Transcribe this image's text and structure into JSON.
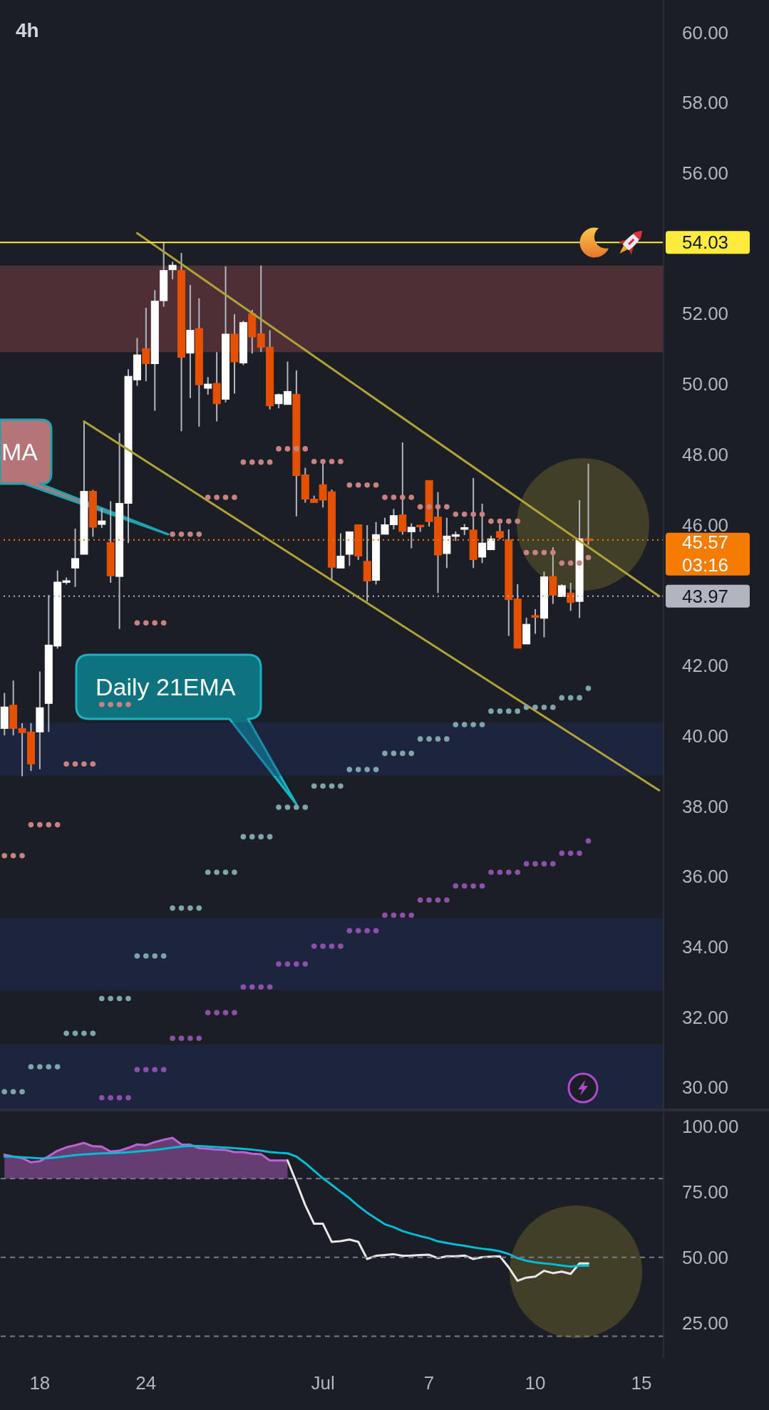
{
  "chart_data": [
    {
      "type": "candlestick",
      "title": "4h",
      "categories": [
        null,
        null,
        null,
        null,
        null,
        null,
        null,
        null,
        null,
        null,
        null,
        null,
        null,
        null,
        null,
        null,
        null,
        null,
        null,
        null,
        null,
        null,
        null,
        null,
        null,
        null,
        null,
        null,
        null,
        null,
        null,
        null,
        null,
        null,
        null,
        null,
        null,
        null,
        null,
        null,
        null,
        null,
        null,
        null,
        null,
        null,
        null,
        null,
        null,
        null,
        null,
        null,
        null,
        null,
        null,
        null,
        null,
        null,
        null,
        null,
        null,
        null,
        null,
        null,
        null,
        null,
        null,
        null,
        null,
        null,
        null,
        null,
        null,
        null,
        null
      ],
      "ohlc": [
        [
          40.21,
          41.22,
          40.01,
          40.82
        ],
        [
          40.87,
          41.57,
          40.01,
          40.21
        ],
        [
          40.21,
          40.36,
          38.85,
          40.09
        ],
        [
          40.11,
          40.36,
          39.0,
          39.2
        ],
        [
          40.11,
          41.83,
          39.05,
          40.8
        ],
        [
          40.92,
          44.0,
          40.11,
          42.58
        ],
        [
          42.55,
          44.7,
          42.48,
          44.37
        ],
        [
          44.39,
          44.5,
          44.3,
          44.41
        ],
        [
          44.77,
          45.89,
          44.23,
          45.04
        ],
        [
          45.16,
          48.94,
          45.16,
          46.95
        ],
        [
          46.95,
          46.99,
          45.66,
          45.93
        ],
        [
          46.01,
          46.47,
          45.91,
          46.11
        ],
        [
          45.5,
          46.67,
          44.35,
          44.55
        ],
        [
          44.53,
          48.61,
          43.04,
          46.61
        ],
        [
          46.61,
          50.42,
          45.48,
          50.22
        ],
        [
          50.12,
          51.31,
          49.95,
          50.83
        ],
        [
          51.01,
          52.17,
          50.08,
          50.58
        ],
        [
          50.58,
          52.67,
          49.24,
          52.36
        ],
        [
          52.37,
          54.03,
          52.2,
          53.23
        ],
        [
          53.25,
          53.48,
          52.98,
          53.38
        ],
        [
          53.23,
          53.73,
          48.66,
          50.76
        ],
        [
          50.88,
          52.82,
          49.6,
          51.53
        ],
        [
          51.58,
          52.44,
          48.79,
          49.98
        ],
        [
          49.88,
          50.2,
          49.7,
          50.0
        ],
        [
          50.02,
          50.91,
          48.94,
          49.44
        ],
        [
          49.57,
          53.35,
          49.48,
          51.42
        ],
        [
          51.42,
          51.99,
          49.73,
          50.63
        ],
        [
          50.6,
          51.8,
          50.54,
          51.75
        ],
        [
          52.0,
          52.11,
          50.87,
          51.34
        ],
        [
          51.43,
          53.37,
          50.91,
          51.05
        ],
        [
          51.05,
          51.53,
          49.28,
          49.38
        ],
        [
          49.44,
          49.73,
          49.31,
          49.7
        ],
        [
          49.42,
          50.64,
          49.42,
          49.79
        ],
        [
          49.71,
          50.39,
          46.24,
          47.4
        ],
        [
          47.42,
          47.62,
          46.63,
          46.73
        ],
        [
          46.73,
          46.83,
          46.62,
          46.63
        ],
        [
          47.14,
          47.73,
          46.49,
          46.7
        ],
        [
          46.94,
          47.0,
          44.42,
          44.79
        ],
        [
          44.77,
          45.76,
          44.77,
          45.11
        ],
        [
          45.16,
          45.8,
          44.83,
          45.8
        ],
        [
          46.0,
          46.0,
          45.0,
          45.11
        ],
        [
          44.96,
          45.99,
          43.82,
          44.4
        ],
        [
          44.42,
          46.08,
          44.3,
          45.72
        ],
        [
          45.73,
          46.2,
          45.73,
          46.0
        ],
        [
          46.0,
          46.45,
          45.87,
          46.26
        ],
        [
          46.28,
          48.34,
          45.72,
          45.81
        ],
        [
          45.8,
          46.04,
          45.33,
          45.93
        ],
        [
          45.99,
          45.99,
          45.8,
          45.95
        ],
        [
          47.26,
          47.26,
          45.95,
          46.09
        ],
        [
          46.22,
          46.93,
          44.06,
          45.14
        ],
        [
          45.18,
          46.2,
          44.77,
          45.68
        ],
        [
          45.71,
          45.81,
          45.54,
          45.72
        ],
        [
          45.91,
          46.02,
          45.71,
          45.92
        ],
        [
          45.85,
          47.33,
          44.77,
          45.01
        ],
        [
          45.08,
          46.6,
          44.91,
          45.48
        ],
        [
          45.29,
          45.69,
          45.29,
          45.6
        ],
        [
          45.81,
          46.02,
          45.59,
          45.64
        ],
        [
          45.58,
          45.87,
          42.84,
          43.87
        ],
        [
          43.89,
          44.31,
          42.49,
          42.49
        ],
        [
          42.61,
          43.36,
          42.61,
          43.17
        ],
        [
          43.42,
          43.6,
          42.9,
          43.39
        ],
        [
          43.34,
          44.67,
          42.8,
          44.52
        ],
        [
          44.53,
          45.36,
          43.75,
          44.0
        ],
        [
          43.96,
          44.31,
          43.96,
          44.27
        ],
        [
          44.06,
          44.35,
          43.55,
          43.79
        ],
        [
          43.82,
          46.7,
          43.35,
          45.6
        ],
        [
          45.6,
          47.74,
          45.43,
          45.57
        ],
        null,
        null,
        null,
        null,
        null,
        null,
        null,
        null
      ],
      "colors": [
        "#ffffff",
        "#e65100",
        "#e65100",
        "#e65100",
        "#ffffff",
        "#ffffff",
        "#ffffff",
        "#ffffff",
        "#ffffff",
        "#ffffff",
        "#e65100",
        "#ffffff",
        "#e65100",
        "#ffffff",
        "#ffffff",
        "#ffffff",
        "#e65100",
        "#ffffff",
        "#ffffff",
        "#ffffff",
        "#e65100",
        "#ffffff",
        "#e65100",
        "#ffffff",
        "#e65100",
        "#ffffff",
        "#e65100",
        "#ffffff",
        "#e65100",
        "#e65100",
        "#e65100",
        "#ffffff",
        "#ffffff",
        "#e65100",
        "#e65100",
        "#e65100",
        "#e65100",
        "#e65100",
        "#ffffff",
        "#ffffff",
        "#e65100",
        "#e65100",
        "#ffffff",
        "#ffffff",
        "#ffffff",
        "#e65100",
        "#ffffff",
        "#e65100",
        "#e65100",
        "#e65100",
        "#ffffff",
        "#ffffff",
        "#ffffff",
        "#e65100",
        "#ffffff",
        "#ffffff",
        "#e65100",
        "#e65100",
        "#e65100",
        "#ffffff",
        "#e65100",
        "#ffffff",
        "#e65100",
        "#ffffff",
        "#e65100",
        "#ffffff",
        "#e65100",
        null,
        null,
        null,
        null,
        null,
        null,
        null,
        null
      ],
      "ylim": [
        29.4,
        60.92
      ],
      "yticks": [
        {
          "value": 30,
          "label": "30.00"
        },
        {
          "value": 32,
          "label": "32.00"
        },
        {
          "value": 34,
          "label": "34.00"
        },
        {
          "value": 36,
          "label": "36.00"
        },
        {
          "value": 38,
          "label": "38.00"
        },
        {
          "value": 40,
          "label": "40.00"
        },
        {
          "value": 42,
          "label": "42.00"
        },
        {
          "value": 46,
          "label": "46.00"
        },
        {
          "value": 48,
          "label": "48.00"
        },
        {
          "value": 50,
          "label": "50.00"
        },
        {
          "value": 52,
          "label": "52.00"
        },
        {
          "value": 56,
          "label": "56.00"
        },
        {
          "value": 58,
          "label": "58.00"
        },
        {
          "value": 60,
          "label": "60.00"
        }
      ],
      "tick_labels": "y",
      "series": [
        {
          "type": "scatter",
          "marker": "circle",
          "color": "#c88282",
          "values": [
            36.59,
            36.59,
            36.59,
            37.47,
            37.47,
            37.47,
            37.47,
            39.2,
            39.2,
            39.2,
            39.2,
            40.89,
            40.89,
            40.89,
            40.89,
            43.21,
            43.21,
            43.21,
            43.21,
            45.73,
            45.73,
            45.73,
            45.73,
            46.78,
            46.78,
            46.78,
            46.78,
            47.78,
            47.78,
            47.78,
            47.78,
            48.16,
            48.16,
            48.16,
            48.16,
            47.8,
            47.8,
            47.8,
            47.8,
            47.13,
            47.13,
            47.13,
            47.13,
            46.78,
            46.78,
            46.78,
            46.78,
            46.51,
            46.51,
            46.51,
            46.51,
            46.3,
            46.3,
            46.3,
            46.3,
            46.1,
            46.1,
            46.1,
            46.1,
            45.21,
            45.21,
            45.21,
            45.21,
            44.91,
            44.91,
            44.91,
            45.07,
            null,
            null,
            null,
            null,
            null,
            null,
            null,
            null
          ]
        },
        {
          "type": "scatter",
          "marker": "circle",
          "color": "#7da5aa",
          "values": [
            29.88,
            29.88,
            29.88,
            30.59,
            30.59,
            30.59,
            30.59,
            31.54,
            31.54,
            31.54,
            31.54,
            32.53,
            32.53,
            32.53,
            32.53,
            33.74,
            33.74,
            33.74,
            33.74,
            35.1,
            35.1,
            35.1,
            35.1,
            36.12,
            36.12,
            36.12,
            36.12,
            37.13,
            37.13,
            37.13,
            37.13,
            37.97,
            37.97,
            37.97,
            37.97,
            38.57,
            38.57,
            38.57,
            38.57,
            39.04,
            39.04,
            39.04,
            39.04,
            39.5,
            39.5,
            39.5,
            39.5,
            39.91,
            39.91,
            39.91,
            39.91,
            40.32,
            40.32,
            40.32,
            40.32,
            40.7,
            40.7,
            40.7,
            40.7,
            40.81,
            40.81,
            40.81,
            40.81,
            41.08,
            41.08,
            41.08,
            41.35,
            null,
            null,
            null,
            null,
            null,
            null,
            null,
            null
          ]
        },
        {
          "type": "scatter",
          "marker": "circle",
          "color": "#8c50aa",
          "values": [
            null,
            null,
            null,
            null,
            null,
            null,
            null,
            null,
            null,
            null,
            null,
            29.71,
            29.71,
            29.71,
            29.71,
            30.51,
            30.51,
            30.51,
            30.51,
            31.4,
            31.4,
            31.4,
            31.4,
            32.13,
            32.13,
            32.13,
            32.13,
            32.86,
            32.86,
            32.86,
            32.86,
            33.51,
            33.51,
            33.51,
            33.51,
            34.02,
            34.02,
            34.02,
            34.02,
            34.46,
            34.46,
            34.46,
            34.46,
            34.9,
            34.9,
            34.9,
            34.9,
            35.33,
            35.33,
            35.33,
            35.33,
            35.73,
            35.73,
            35.73,
            35.73,
            36.12,
            36.12,
            36.12,
            36.12,
            36.36,
            36.36,
            36.36,
            36.36,
            36.66,
            36.66,
            36.66,
            37.01,
            null,
            null,
            null,
            null,
            null,
            null,
            null,
            null
          ]
        },
        {
          "type": "line",
          "color": "#b0a236",
          "values": [
            null,
            null,
            null,
            null,
            null,
            null,
            null,
            null,
            null,
            null,
            null,
            null,
            null,
            null,
            null,
            54.29,
            null,
            null,
            null,
            null,
            null,
            null,
            null,
            null,
            null,
            null,
            null,
            null,
            null,
            null,
            null,
            null,
            null,
            null,
            null,
            null,
            null,
            null,
            null,
            null,
            null,
            null,
            null,
            null,
            null,
            null,
            null,
            null,
            null,
            null,
            null,
            null,
            null,
            null,
            null,
            null,
            null,
            null,
            null,
            null,
            null,
            null,
            null,
            null,
            null,
            null,
            null,
            null,
            null,
            null,
            null,
            null,
            null,
            null,
            43.97
          ]
        },
        {
          "type": "line",
          "color": "#b0a236",
          "values": [
            null,
            null,
            null,
            null,
            null,
            null,
            null,
            null,
            null,
            48.94,
            null,
            null,
            null,
            null,
            null,
            null,
            null,
            null,
            null,
            null,
            null,
            null,
            null,
            null,
            null,
            null,
            null,
            null,
            null,
            null,
            null,
            null,
            null,
            null,
            null,
            null,
            null,
            null,
            null,
            null,
            null,
            null,
            null,
            null,
            null,
            null,
            null,
            null,
            null,
            null,
            null,
            null,
            null,
            null,
            null,
            null,
            null,
            null,
            null,
            null,
            null,
            null,
            null,
            null,
            null,
            null,
            null,
            null,
            null,
            null,
            null,
            null,
            null,
            null,
            38.45
          ]
        }
      ],
      "ref_lines": [
        {
          "axis": "y",
          "value": 54.03,
          "label": "54.03",
          "color": "#ffeb3b",
          "line_style": "solid"
        },
        {
          "axis": "y",
          "value": 45.57,
          "label": "45.57\n03:16",
          "color": "#f57c00",
          "line_style": "dotted"
        },
        {
          "axis": "y",
          "value": 43.97,
          "label": "43.97",
          "color": "#b2b5be",
          "line_style": "dotted"
        }
      ],
      "bands": [
        {
          "axis": "y",
          "from": 50.91,
          "to": 53.37,
          "color": "#c25a5e"
        },
        {
          "axis": "y",
          "from": 38.86,
          "to": 40.38,
          "color": "#213673"
        },
        {
          "axis": "y",
          "from": 32.76,
          "to": 34.82,
          "color": "#213673"
        },
        {
          "axis": "y",
          "from": 29.4,
          "to": 31.22,
          "color": "#213673"
        }
      ],
      "annotations": [
        "MA",
        "Daily 21EMA"
      ]
    },
    {
      "type": "line",
      "categories": [
        null,
        null,
        null,
        null,
        "18",
        null,
        null,
        null,
        null,
        null,
        null,
        null,
        null,
        null,
        null,
        null,
        "24",
        null,
        null,
        null,
        null,
        null,
        null,
        null,
        null,
        null,
        null,
        null,
        null,
        null,
        null,
        null,
        null,
        null,
        null,
        null,
        "Jul",
        null,
        null,
        null,
        null,
        null,
        null,
        null,
        null,
        null,
        null,
        null,
        "7",
        null,
        null,
        null,
        null,
        null,
        null,
        null,
        null,
        null,
        null,
        null,
        "10",
        null,
        null,
        null,
        null,
        null,
        null,
        null,
        null,
        null,
        null,
        null,
        "15",
        null,
        null
      ],
      "ylim": [
        11.7,
        105
      ],
      "yticks": [
        {
          "value": 25,
          "label": "25.00"
        },
        {
          "value": 50,
          "label": "50.00"
        },
        {
          "value": 75,
          "label": "75.00"
        },
        {
          "value": 100,
          "label": "100.00"
        }
      ],
      "series": [
        {
          "color": "#be64d2",
          "values": [
            89.1,
            88.4,
            87.8,
            86.2,
            86.6,
            88.5,
            90.6,
            91.9,
            92.7,
            93.6,
            92.3,
            92.2,
            90.3,
            90.6,
            91.7,
            93.0,
            92.7,
            93.9,
            94.8,
            95.5,
            93.0,
            92.9,
            91.6,
            91.4,
            91.0,
            90.9,
            90.1,
            90.1,
            89.5,
            89.3,
            86.9,
            86.9,
            86.9,
            null,
            null,
            null,
            null,
            null,
            null,
            null,
            null,
            null,
            null,
            null,
            null,
            null,
            null,
            null,
            null,
            null,
            null,
            null,
            null,
            null,
            null,
            null,
            null,
            null,
            null,
            null,
            null,
            null,
            null,
            null,
            null,
            null,
            null,
            null,
            null,
            null,
            null,
            null,
            null,
            null,
            null
          ],
          "lower": [
            80,
            80,
            80,
            80,
            80,
            80,
            80,
            80,
            80,
            80,
            80,
            80,
            80,
            80,
            80,
            80,
            80,
            80,
            80,
            80,
            80,
            80,
            80,
            80,
            80,
            80,
            80,
            80,
            80,
            80,
            80,
            80,
            80,
            null,
            null,
            null,
            null,
            null,
            null,
            null,
            null,
            null,
            null,
            null,
            null,
            null,
            null,
            null,
            null,
            null,
            null,
            null,
            null,
            null,
            null,
            null,
            null,
            null,
            null,
            null,
            null,
            null,
            null,
            null,
            null,
            null,
            null,
            null,
            null,
            null,
            null,
            null,
            null,
            null,
            null
          ],
          "upper": [
            89.1,
            88.4,
            87.8,
            86.2,
            86.6,
            88.5,
            90.6,
            91.9,
            92.7,
            93.6,
            92.3,
            92.2,
            90.3,
            90.6,
            91.7,
            93.0,
            92.7,
            93.9,
            94.8,
            95.5,
            93.0,
            92.9,
            91.6,
            91.4,
            91.0,
            90.9,
            90.1,
            90.1,
            89.5,
            89.3,
            86.9,
            86.9,
            86.9,
            null,
            null,
            null,
            null,
            null,
            null,
            null,
            null,
            null,
            null,
            null,
            null,
            null,
            null,
            null,
            null,
            null,
            null,
            null,
            null,
            null,
            null,
            null,
            null,
            null,
            null,
            null,
            null,
            null,
            null,
            null,
            null,
            null,
            null,
            null,
            null,
            null,
            null,
            null,
            null,
            null,
            null
          ]
        },
        {
          "color": "#e8e8e8",
          "values": [
            null,
            null,
            null,
            null,
            null,
            null,
            null,
            null,
            null,
            null,
            null,
            null,
            null,
            null,
            null,
            null,
            null,
            null,
            null,
            null,
            null,
            null,
            null,
            null,
            null,
            null,
            null,
            null,
            null,
            null,
            null,
            null,
            86.9,
            78.6,
            69.9,
            62.8,
            62.8,
            55.9,
            56.2,
            56.8,
            55.9,
            49.4,
            50.6,
            50.9,
            51.2,
            50.6,
            50.7,
            50.9,
            51.0,
            49.7,
            50.4,
            50.4,
            50.7,
            49.4,
            50.1,
            50.3,
            50.4,
            46.2,
            41.1,
            42.3,
            42.7,
            44.9,
            44.0,
            44.6,
            43.7,
            47.7,
            47.7,
            null,
            null,
            null,
            null,
            null,
            null,
            null,
            null
          ]
        },
        {
          "color": "#00bcd4",
          "values": [
            88.4,
            88.3,
            88.1,
            87.9,
            87.7,
            87.8,
            88.1,
            88.5,
            88.9,
            89.2,
            89.4,
            89.6,
            89.7,
            89.8,
            90.0,
            90.3,
            90.6,
            90.9,
            91.3,
            91.8,
            92.2,
            92.4,
            92.4,
            92.2,
            92.0,
            91.8,
            91.6,
            91.3,
            91.0,
            90.6,
            90.1,
            89.8,
            89.6,
            88.4,
            85.9,
            83.0,
            80.1,
            77.6,
            75.0,
            72.5,
            69.6,
            67.0,
            64.8,
            62.6,
            61.5,
            60.0,
            59.0,
            58.1,
            57.3,
            56.1,
            55.5,
            54.9,
            54.4,
            53.8,
            53.3,
            52.9,
            52.3,
            51.3,
            49.7,
            48.7,
            48.1,
            47.7,
            47.4,
            46.9,
            46.5,
            46.8,
            46.8,
            null,
            null,
            null,
            null,
            null,
            null,
            null,
            null
          ]
        }
      ],
      "ref_lines": [
        {
          "axis": "y",
          "value": 80,
          "color": "#787b86",
          "line_style": "dashed"
        },
        {
          "axis": "y",
          "value": 50,
          "color": "#787b86",
          "line_style": "dashed"
        },
        {
          "axis": "y",
          "value": 20,
          "color": "#787b86",
          "line_style": "dashed"
        }
      ]
    }
  ]
}
